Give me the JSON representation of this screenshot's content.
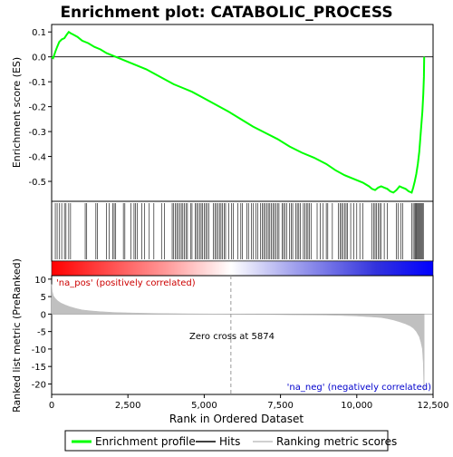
{
  "chart_data": {
    "type": "line",
    "title": "Enrichment plot: CATABOLIC_PROCESS",
    "xlabel": "Rank in Ordered Dataset",
    "xlim": [
      0,
      12500
    ],
    "x_ticks": [
      "0",
      "2,500",
      "5,000",
      "7,500",
      "10,000",
      "12,500"
    ],
    "x_tick_values": [
      0,
      2500,
      5000,
      7500,
      10000,
      12500
    ],
    "panels": {
      "es": {
        "ylabel": "Enrichment score (ES)",
        "ylim": [
          -0.58,
          0.13
        ],
        "y_ticks": [
          "0.1",
          "0.0",
          "-0.1",
          "-0.2",
          "-0.3",
          "-0.4",
          "-0.5"
        ],
        "y_tick_values": [
          0.1,
          0.0,
          -0.1,
          -0.2,
          -0.3,
          -0.4,
          -0.5
        ],
        "series": [
          {
            "name": "Enrichment profile",
            "color": "#00ff00",
            "x": [
              0,
              50,
              120,
              180,
              250,
              330,
              420,
              500,
              560,
              620,
              700,
              850,
              1000,
              1200,
              1400,
              1600,
              1800,
              2000,
              2200,
              2500,
              2800,
              3100,
              3400,
              3700,
              4000,
              4300,
              4600,
              4900,
              5200,
              5500,
              5800,
              6200,
              6600,
              7000,
              7400,
              7800,
              8200,
              8600,
              9000,
              9300,
              9600,
              9900,
              10200,
              10400,
              10500,
              10600,
              10700,
              10800,
              10900,
              11000,
              11100,
              11200,
              11300,
              11400,
              11500,
              11600,
              11700,
              11800,
              11850,
              11900,
              11950,
              12000,
              12050,
              12100,
              12150,
              12180,
              12200,
              12210
            ],
            "values": [
              0.0,
              -0.005,
              0.02,
              0.04,
              0.06,
              0.07,
              0.075,
              0.09,
              0.1,
              0.095,
              0.09,
              0.08,
              0.065,
              0.055,
              0.04,
              0.03,
              0.015,
              0.005,
              -0.005,
              -0.02,
              -0.035,
              -0.05,
              -0.07,
              -0.09,
              -0.11,
              -0.125,
              -0.14,
              -0.16,
              -0.18,
              -0.2,
              -0.22,
              -0.25,
              -0.28,
              -0.305,
              -0.33,
              -0.36,
              -0.385,
              -0.405,
              -0.43,
              -0.455,
              -0.475,
              -0.49,
              -0.505,
              -0.52,
              -0.53,
              -0.535,
              -0.525,
              -0.52,
              -0.525,
              -0.53,
              -0.54,
              -0.545,
              -0.535,
              -0.52,
              -0.525,
              -0.53,
              -0.54,
              -0.545,
              -0.525,
              -0.5,
              -0.47,
              -0.43,
              -0.38,
              -0.3,
              -0.22,
              -0.15,
              -0.08,
              0.0
            ]
          }
        ],
        "baseline": 0.0
      },
      "hits": {
        "label": "Hits",
        "positions": [
          120,
          180,
          260,
          330,
          420,
          470,
          560,
          620,
          1100,
          1150,
          1450,
          1500,
          1800,
          1880,
          2000,
          2050,
          2100,
          2350,
          2400,
          2600,
          2700,
          2750,
          2800,
          2950,
          3050,
          3200,
          3350,
          3600,
          3700,
          3950,
          4000,
          4050,
          4100,
          4150,
          4200,
          4250,
          4300,
          4350,
          4400,
          4450,
          4550,
          4600,
          4700,
          4750,
          4800,
          4850,
          4900,
          4950,
          5000,
          5050,
          5100,
          5150,
          5300,
          5350,
          5400,
          5450,
          5500,
          5550,
          5600,
          5650,
          5700,
          5800,
          5900,
          5950,
          6100,
          6200,
          6250,
          6400,
          6450,
          6550,
          6600,
          6700,
          6750,
          6850,
          6900,
          6950,
          7000,
          7050,
          7100,
          7150,
          7200,
          7250,
          7300,
          7350,
          7400,
          7450,
          7550,
          7600,
          7650,
          7700,
          7800,
          7850,
          7900,
          8000,
          8050,
          8100,
          8150,
          8250,
          8300,
          8350,
          8400,
          8450,
          8500,
          8700,
          8800,
          8900,
          9000,
          9050,
          9200,
          9400,
          9450,
          9500,
          9550,
          9600,
          9650,
          9700,
          9800,
          9900,
          10000,
          10100,
          10200,
          10500,
          10550,
          10600,
          10650,
          10700,
          10750,
          10800,
          10900,
          11000,
          11300,
          11350,
          11450,
          11500,
          11800,
          11850,
          11900,
          11920,
          11950,
          11970,
          12000,
          12030,
          12060,
          12090,
          12120,
          12150,
          12180
        ]
      },
      "metric": {
        "ylabel": "Ranked list metric (PreRanked)",
        "ylim": [
          -23,
          11
        ],
        "y_ticks": [
          "10",
          "5",
          "0",
          "-5",
          "-10",
          "-15",
          "-20"
        ],
        "y_tick_values": [
          10,
          5,
          0,
          -5,
          -10,
          -15,
          -20
        ],
        "x": [
          0,
          20,
          60,
          120,
          200,
          300,
          450,
          600,
          800,
          1000,
          1300,
          1600,
          2000,
          2500,
          3000,
          3500,
          4000,
          4500,
          5000,
          5500,
          5874,
          6500,
          7000,
          8000,
          9000,
          9500,
          10000,
          10500,
          10800,
          11000,
          11200,
          11400,
          11600,
          11750,
          11850,
          11950,
          12050,
          12100,
          12150,
          12180,
          12200,
          12210
        ],
        "values": [
          8.5,
          6.5,
          5.2,
          4.5,
          3.8,
          3.2,
          2.6,
          2.1,
          1.6,
          1.2,
          0.9,
          0.7,
          0.5,
          0.35,
          0.25,
          0.18,
          0.12,
          0.08,
          0.05,
          0.02,
          0.0,
          -0.05,
          -0.1,
          -0.2,
          -0.3,
          -0.4,
          -0.55,
          -0.8,
          -1.0,
          -1.3,
          -1.7,
          -2.2,
          -2.8,
          -3.4,
          -4.0,
          -5.0,
          -6.5,
          -8.0,
          -10.0,
          -14.0,
          -22.0,
          -22.0
        ],
        "zero_cross_label": "Zero cross at 5874",
        "zero_cross": 5874,
        "pos_label": "'na_pos' (positively correlated)",
        "neg_label": "'na_neg' (negatively correlated)"
      }
    },
    "legend": {
      "placement": "bottom",
      "entries": [
        {
          "label": "Enrichment profile",
          "color": "#00ff00"
        },
        {
          "label": "Hits",
          "color": "#000000"
        },
        {
          "label": "Ranking metric scores",
          "color": "#c0c0c0"
        }
      ]
    }
  }
}
